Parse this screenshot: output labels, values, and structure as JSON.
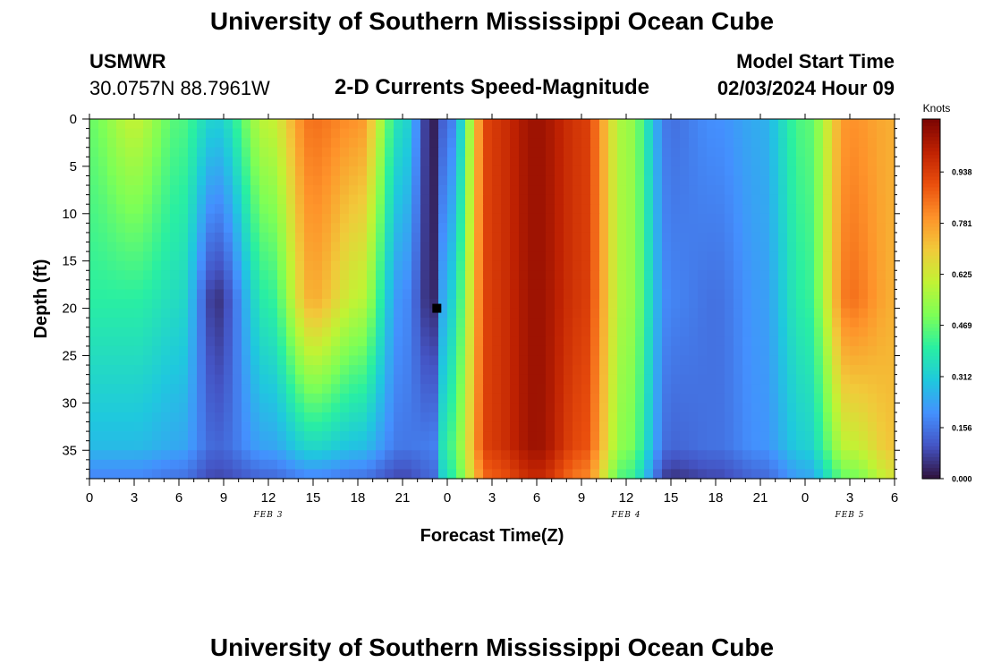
{
  "header": {
    "title": "University of Southern Mississippi Ocean Cube",
    "station": "USMWR",
    "coords": "30.0757N  88.7961W",
    "product": "2-D Currents Speed-Magnitude",
    "model_start_label": "Model Start Time",
    "model_start_value": "02/03/2024 Hour 09"
  },
  "footer": {
    "title": "University of Southern Mississippi Ocean Cube"
  },
  "chart_data": {
    "type": "heatmap",
    "xlabel": "Forecast Time(Z)",
    "ylabel": "Depth (ft)",
    "x_ticks": [
      "0",
      "3",
      "6",
      "9",
      "12",
      "15",
      "18",
      "21",
      "0",
      "3",
      "6",
      "9",
      "12",
      "15",
      "18",
      "21",
      "0",
      "3",
      "6"
    ],
    "x_range_hours": [
      0,
      54
    ],
    "date_labels": [
      {
        "text": "FEB 3",
        "hour": 12
      },
      {
        "text": "FEB 4",
        "hour": 36
      },
      {
        "text": "FEB 5",
        "hour": 51
      }
    ],
    "y_ticks": [
      "0",
      "5",
      "10",
      "15",
      "20",
      "25",
      "30",
      "35"
    ],
    "y_range_ft": [
      0,
      38
    ],
    "y_inverted": true,
    "colorbar": {
      "unit": "Knots",
      "ticks": [
        "0.938",
        "0.781",
        "0.625",
        "0.469",
        "0.312",
        "0.156",
        "0.000"
      ],
      "range": [
        0.0,
        1.1
      ],
      "colors": [
        "#30123b",
        "#4454c4",
        "#4490fe",
        "#1fc8de",
        "#29efa2",
        "#7dff56",
        "#c1f334",
        "#f1ca3a",
        "#fe922a",
        "#ea4f0d",
        "#be2102",
        "#7a0403"
      ]
    },
    "marker": {
      "hour": 23.3,
      "depth_ft": 20
    },
    "speed_profile_knots": [
      {
        "hour": 0,
        "surface": 0.48,
        "mid": 0.4,
        "bottom": 0.25
      },
      {
        "hour": 3,
        "surface": 0.6,
        "mid": 0.4,
        "bottom": 0.25
      },
      {
        "hour": 6,
        "surface": 0.45,
        "mid": 0.35,
        "bottom": 0.22
      },
      {
        "hour": 8.5,
        "surface": 0.32,
        "mid": 0.05,
        "bottom": 0.15
      },
      {
        "hour": 12,
        "surface": 0.6,
        "mid": 0.4,
        "bottom": 0.2
      },
      {
        "hour": 15,
        "surface": 0.85,
        "mid": 0.75,
        "bottom": 0.25
      },
      {
        "hour": 18,
        "surface": 0.8,
        "mid": 0.6,
        "bottom": 0.22
      },
      {
        "hour": 21,
        "surface": 0.35,
        "mid": 0.2,
        "bottom": 0.15
      },
      {
        "hour": 23,
        "surface": 0.02,
        "mid": 0.03,
        "bottom": 0.2
      },
      {
        "hour": 24,
        "surface": 0.15,
        "mid": 0.3,
        "bottom": 0.45
      },
      {
        "hour": 27,
        "surface": 0.95,
        "mid": 0.95,
        "bottom": 0.95
      },
      {
        "hour": 30,
        "surface": 1.05,
        "mid": 1.05,
        "bottom": 1.05
      },
      {
        "hour": 33,
        "surface": 0.95,
        "mid": 0.95,
        "bottom": 0.9
      },
      {
        "hour": 36,
        "surface": 0.55,
        "mid": 0.55,
        "bottom": 0.5
      },
      {
        "hour": 39,
        "surface": 0.15,
        "mid": 0.18,
        "bottom": 0.12
      },
      {
        "hour": 42,
        "surface": 0.2,
        "mid": 0.15,
        "bottom": 0.15
      },
      {
        "hour": 45,
        "surface": 0.25,
        "mid": 0.22,
        "bottom": 0.2
      },
      {
        "hour": 48,
        "surface": 0.45,
        "mid": 0.4,
        "bottom": 0.3
      },
      {
        "hour": 51,
        "surface": 0.8,
        "mid": 0.85,
        "bottom": 0.55
      },
      {
        "hour": 54,
        "surface": 0.75,
        "mid": 0.75,
        "bottom": 0.7
      }
    ]
  }
}
